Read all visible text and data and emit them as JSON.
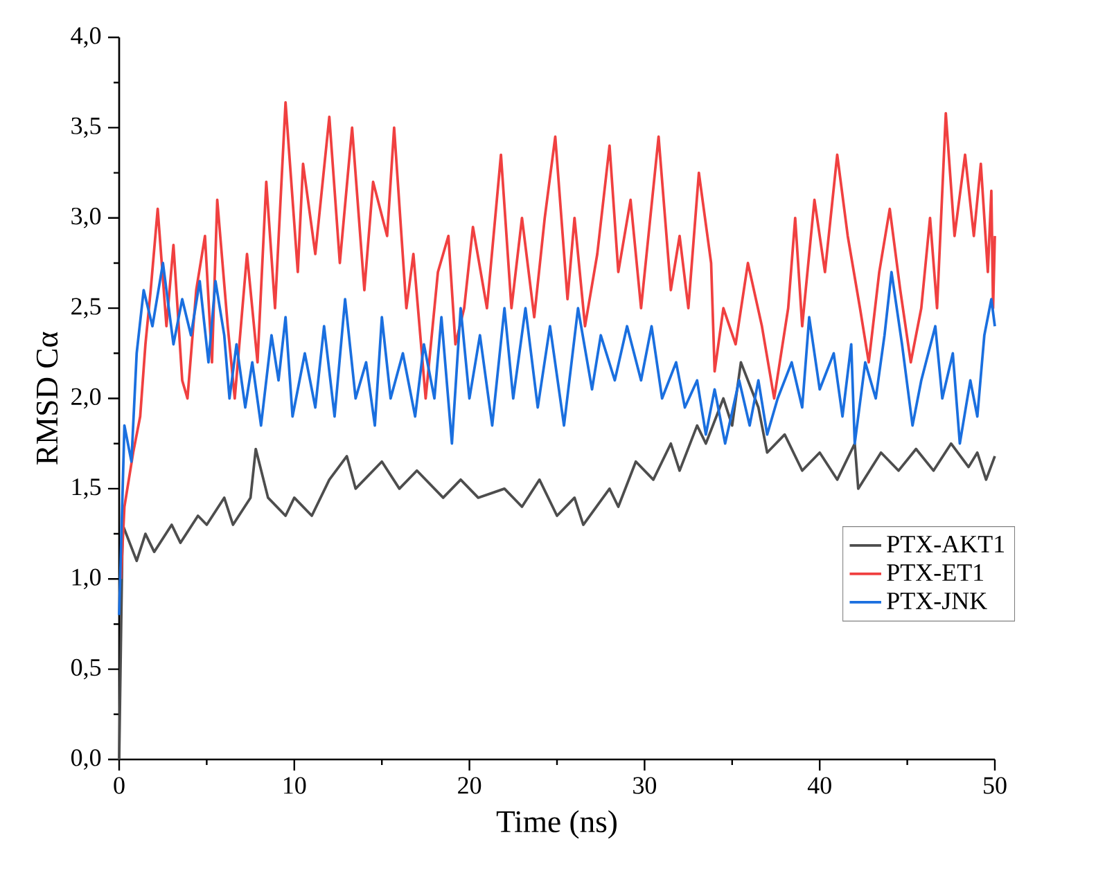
{
  "chart_data": {
    "type": "line",
    "xlabel": "Time (ns)",
    "ylabel": "RMSD Cα",
    "xlim": [
      0,
      50
    ],
    "ylim": [
      0,
      4
    ],
    "xticks": [
      0,
      10,
      20,
      30,
      40,
      50
    ],
    "yticks": [
      {
        "value": 0,
        "label": "0,0"
      },
      {
        "value": 0.5,
        "label": "0,5"
      },
      {
        "value": 1,
        "label": "1,0"
      },
      {
        "value": 1.5,
        "label": "1,5"
      },
      {
        "value": 2,
        "label": "2,0"
      },
      {
        "value": 2.5,
        "label": "2,5"
      },
      {
        "value": 3,
        "label": "3,0"
      },
      {
        "value": 3.5,
        "label": "3,5"
      },
      {
        "value": 4,
        "label": "4,0"
      }
    ],
    "grid": false,
    "legend": "right",
    "marker": "none",
    "line_style": "solid",
    "series": [
      {
        "name": "PTX-AKT1",
        "color": "#4d4d4d",
        "x": [
          0,
          0.2,
          1,
          1.5,
          2,
          3,
          3.5,
          4.5,
          5,
          6,
          6.5,
          7.5,
          7.8,
          8.5,
          9.5,
          10,
          11,
          12,
          13,
          13.5,
          15,
          16,
          17,
          18.5,
          19.5,
          20.5,
          22,
          23,
          24,
          25,
          26,
          26.5,
          28,
          28.5,
          29.5,
          30.5,
          31.5,
          32,
          33,
          33.5,
          34.5,
          35,
          35.5,
          36.5,
          37,
          38,
          39,
          40,
          41,
          42,
          42.2,
          43.5,
          44.5,
          45.5,
          46.5,
          47.5,
          48.5,
          49,
          49.5,
          50
        ],
        "values": [
          0,
          1.3,
          1.1,
          1.25,
          1.15,
          1.3,
          1.2,
          1.35,
          1.3,
          1.45,
          1.3,
          1.45,
          1.72,
          1.45,
          1.35,
          1.45,
          1.35,
          1.55,
          1.68,
          1.5,
          1.65,
          1.5,
          1.6,
          1.45,
          1.55,
          1.45,
          1.5,
          1.4,
          1.55,
          1.35,
          1.45,
          1.3,
          1.5,
          1.4,
          1.65,
          1.55,
          1.75,
          1.6,
          1.85,
          1.75,
          2.0,
          1.85,
          2.2,
          1.95,
          1.7,
          1.8,
          1.6,
          1.7,
          1.55,
          1.75,
          1.5,
          1.7,
          1.6,
          1.72,
          1.6,
          1.75,
          1.62,
          1.7,
          1.55,
          1.68
        ]
      },
      {
        "name": "PTX-ET1",
        "color": "#f04040",
        "x": [
          0.1,
          0.3,
          0.8,
          1.2,
          1.5,
          1.8,
          2.2,
          2.7,
          3.1,
          3.6,
          3.9,
          4.4,
          4.9,
          5.3,
          5.6,
          6.2,
          6.6,
          7.3,
          7.9,
          8.4,
          8.9,
          9.5,
          10.2,
          10.5,
          11.2,
          12.0,
          12.6,
          13.3,
          14.0,
          14.5,
          15.3,
          15.7,
          16.4,
          16.8,
          17.5,
          18.2,
          18.8,
          19.2,
          19.7,
          20.2,
          21.0,
          21.8,
          22.4,
          23.0,
          23.7,
          24.3,
          24.9,
          25.6,
          26.0,
          26.6,
          27.3,
          28.0,
          28.5,
          29.2,
          29.8,
          30.8,
          31.5,
          32.0,
          32.5,
          33.1,
          33.8,
          34.0,
          34.5,
          35.2,
          35.9,
          36.7,
          37.4,
          38.2,
          38.6,
          39.0,
          39.7,
          40.3,
          41.0,
          41.6,
          42.3,
          42.8,
          43.4,
          44.0,
          44.6,
          45.2,
          45.8,
          46.3,
          46.7,
          47.2,
          47.7,
          48.3,
          48.8,
          49.2,
          49.6,
          49.8,
          49.9,
          50
        ],
        "values": [
          1.0,
          1.4,
          1.7,
          1.9,
          2.3,
          2.6,
          3.05,
          2.4,
          2.85,
          2.1,
          2.0,
          2.6,
          2.9,
          2.2,
          3.1,
          2.4,
          2.0,
          2.8,
          2.2,
          3.2,
          2.5,
          3.64,
          2.7,
          3.3,
          2.8,
          3.56,
          2.75,
          3.5,
          2.6,
          3.2,
          2.9,
          3.5,
          2.5,
          2.8,
          2.0,
          2.7,
          2.9,
          2.3,
          2.5,
          2.95,
          2.5,
          3.35,
          2.5,
          3.0,
          2.45,
          3.0,
          3.45,
          2.55,
          3.0,
          2.4,
          2.8,
          3.4,
          2.7,
          3.1,
          2.5,
          3.45,
          2.6,
          2.9,
          2.5,
          3.25,
          2.75,
          2.15,
          2.5,
          2.3,
          2.75,
          2.4,
          2.0,
          2.5,
          3.0,
          2.4,
          3.1,
          2.7,
          3.35,
          2.9,
          2.5,
          2.2,
          2.7,
          3.05,
          2.6,
          2.2,
          2.5,
          3.0,
          2.5,
          3.58,
          2.9,
          3.35,
          2.9,
          3.3,
          2.7,
          3.15,
          2.5,
          2.9
        ]
      },
      {
        "name": "PTX-JNK",
        "color": "#1a6fdf",
        "x": [
          0,
          0.3,
          0.7,
          1.0,
          1.4,
          1.9,
          2.5,
          3.1,
          3.6,
          4.1,
          4.6,
          5.1,
          5.5,
          6.0,
          6.3,
          6.7,
          7.2,
          7.6,
          8.1,
          8.7,
          9.1,
          9.5,
          9.9,
          10.6,
          11.2,
          11.7,
          12.3,
          12.9,
          13.5,
          14.1,
          14.6,
          15.0,
          15.5,
          16.2,
          16.9,
          17.4,
          18.0,
          18.4,
          19.0,
          19.5,
          20.0,
          20.6,
          21.3,
          22.0,
          22.5,
          23.2,
          23.9,
          24.6,
          25.4,
          26.2,
          27.0,
          27.5,
          28.3,
          29.0,
          29.8,
          30.4,
          31.0,
          31.8,
          32.3,
          33.0,
          33.5,
          34.0,
          34.6,
          35.4,
          36.0,
          36.5,
          37.0,
          37.6,
          38.4,
          39.0,
          39.4,
          40.0,
          40.8,
          41.3,
          41.8,
          42.0,
          42.6,
          43.2,
          43.7,
          44.1,
          44.7,
          45.3,
          45.8,
          46.6,
          47.0,
          47.6,
          48.0,
          48.6,
          49.0,
          49.4,
          49.8,
          50
        ],
        "values": [
          0.8,
          1.85,
          1.65,
          2.25,
          2.6,
          2.4,
          2.75,
          2.3,
          2.55,
          2.35,
          2.65,
          2.2,
          2.65,
          2.35,
          2.0,
          2.3,
          1.95,
          2.2,
          1.85,
          2.35,
          2.1,
          2.45,
          1.9,
          2.25,
          1.95,
          2.4,
          1.9,
          2.55,
          2.0,
          2.2,
          1.85,
          2.45,
          2.0,
          2.25,
          1.9,
          2.3,
          2.0,
          2.45,
          1.75,
          2.5,
          2.0,
          2.35,
          1.85,
          2.5,
          2.0,
          2.5,
          1.95,
          2.4,
          1.85,
          2.5,
          2.05,
          2.35,
          2.1,
          2.4,
          2.1,
          2.4,
          2.0,
          2.2,
          1.95,
          2.1,
          1.8,
          2.05,
          1.75,
          2.1,
          1.85,
          2.1,
          1.8,
          2.0,
          2.2,
          1.95,
          2.45,
          2.05,
          2.25,
          1.9,
          2.3,
          1.75,
          2.2,
          2.0,
          2.35,
          2.7,
          2.3,
          1.85,
          2.1,
          2.4,
          2.0,
          2.25,
          1.75,
          2.1,
          1.9,
          2.35,
          2.55,
          2.4
        ]
      }
    ]
  }
}
